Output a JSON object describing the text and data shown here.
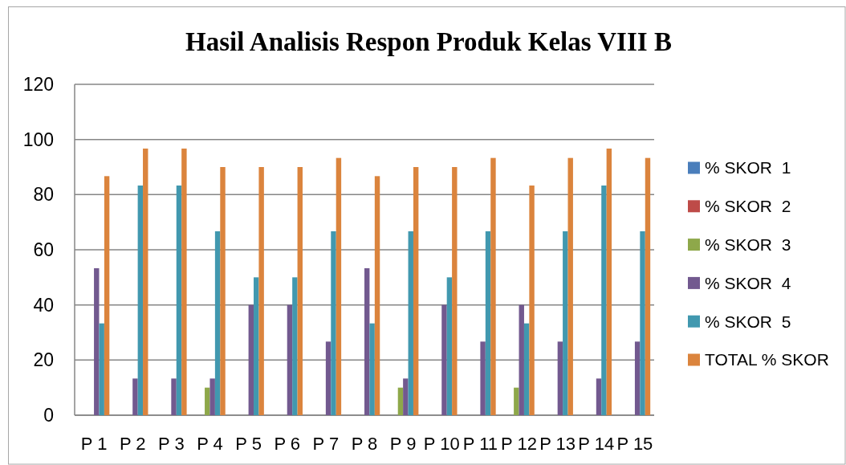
{
  "chart_data": {
    "type": "bar",
    "title": "Hasil Analisis Respon Produk Kelas VIII B",
    "categories": [
      "P 1",
      "P 2",
      "P 3",
      "P 4",
      "P 5",
      "P 6",
      "P 7",
      "P 8",
      "P 9",
      "P 10",
      "P 11",
      "P 12",
      "P 13",
      "P 14",
      "P 15"
    ],
    "series": [
      {
        "name": "% SKOR  1",
        "color": "#4a7ebb",
        "values": [
          0,
          0,
          0,
          0,
          0,
          0,
          0,
          0,
          0,
          0,
          0,
          0,
          0,
          0,
          0
        ]
      },
      {
        "name": "% SKOR  2",
        "color": "#be4b48",
        "values": [
          0,
          0,
          0,
          0,
          0,
          0,
          0,
          0,
          0,
          0,
          0,
          0,
          0,
          0,
          0
        ]
      },
      {
        "name": "% SKOR  3",
        "color": "#8ea84a",
        "values": [
          0,
          0,
          0,
          10,
          0,
          0,
          0,
          0,
          10,
          0,
          0,
          10,
          0,
          0,
          0
        ]
      },
      {
        "name": "% SKOR  4",
        "color": "#72598f",
        "values": [
          53.3,
          13.3,
          13.3,
          13.3,
          40,
          40,
          26.7,
          53.3,
          13.3,
          40,
          26.7,
          40,
          26.7,
          13.3,
          26.7
        ]
      },
      {
        "name": "% SKOR  5",
        "color": "#4198af",
        "values": [
          33.3,
          83.3,
          83.3,
          66.7,
          50,
          50,
          66.7,
          33.3,
          66.7,
          50,
          66.7,
          33.3,
          66.7,
          83.3,
          66.7
        ]
      },
      {
        "name": "TOTAL % SKOR",
        "color": "#db843d",
        "values": [
          86.7,
          96.7,
          96.7,
          90,
          90,
          90,
          93.3,
          86.7,
          90,
          90,
          93.3,
          83.3,
          93.3,
          96.7,
          93.3
        ]
      }
    ],
    "ylim": [
      0,
      120
    ],
    "yticks": [
      0,
      20,
      40,
      60,
      80,
      100,
      120
    ],
    "grid": "y",
    "legend": "right"
  }
}
